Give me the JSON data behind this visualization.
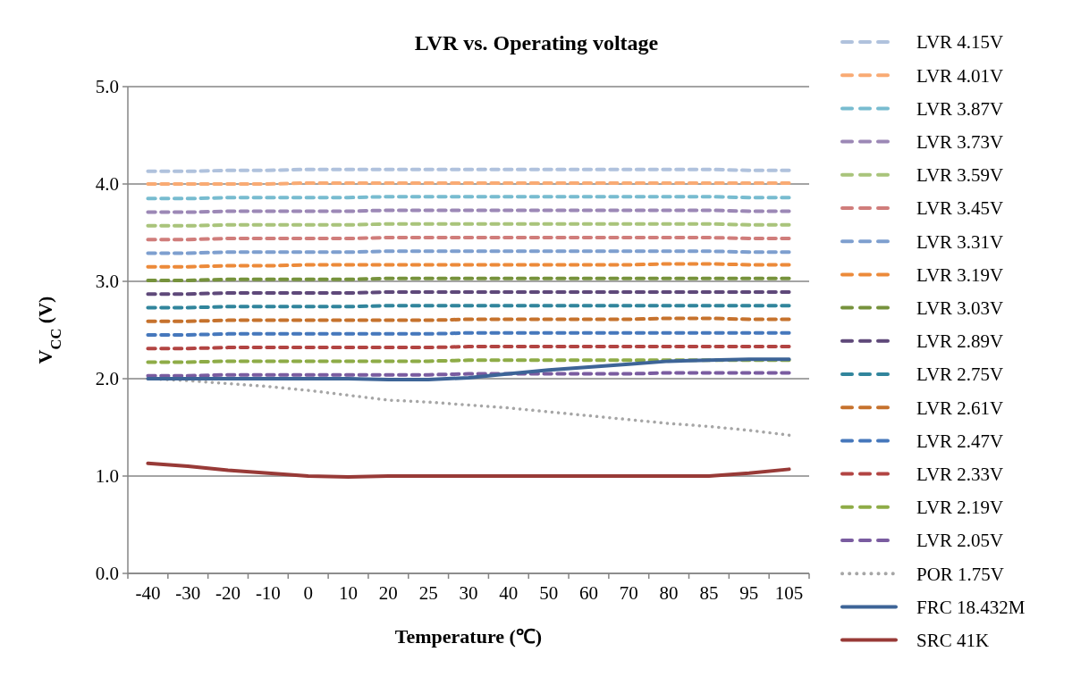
{
  "chart_data": {
    "type": "line",
    "title": "LVR vs. Operating voltage",
    "xlabel": "Temperature (℃)",
    "ylabel": "V$_{CC}$ (V)",
    "categories": [
      "-40",
      "-30",
      "-20",
      "-10",
      "0",
      "10",
      "20",
      "25",
      "30",
      "40",
      "50",
      "60",
      "70",
      "80",
      "85",
      "95",
      "105"
    ],
    "ylim": [
      0,
      5
    ],
    "yticks": [
      {
        "value": 0,
        "label": "0.0"
      },
      {
        "value": 1,
        "label": "1.0"
      },
      {
        "value": 2,
        "label": "2.0"
      },
      {
        "value": 3,
        "label": "3.0"
      },
      {
        "value": 4,
        "label": "4.0"
      },
      {
        "value": 5,
        "label": "5.0"
      }
    ],
    "grid": "y",
    "legend": "right",
    "marker": "none",
    "series": [
      {
        "name": "LVR 4.15V",
        "color": "#b0c2dd",
        "line_style": "dashed",
        "values": [
          4.13,
          4.13,
          4.14,
          4.14,
          4.15,
          4.15,
          4.15,
          4.15,
          4.15,
          4.15,
          4.15,
          4.15,
          4.15,
          4.15,
          4.15,
          4.14,
          4.14
        ]
      },
      {
        "name": "LVR 4.01V",
        "color": "#f9ab74",
        "line_style": "dashed",
        "values": [
          4.0,
          4.0,
          4.0,
          4.0,
          4.01,
          4.01,
          4.01,
          4.01,
          4.01,
          4.01,
          4.01,
          4.01,
          4.01,
          4.01,
          4.01,
          4.01,
          4.01
        ]
      },
      {
        "name": "LVR 3.87V",
        "color": "#78bcd0",
        "line_style": "dashed",
        "values": [
          3.85,
          3.85,
          3.86,
          3.86,
          3.86,
          3.86,
          3.87,
          3.87,
          3.87,
          3.87,
          3.87,
          3.87,
          3.87,
          3.87,
          3.87,
          3.86,
          3.86
        ]
      },
      {
        "name": "LVR 3.73V",
        "color": "#9c88b6",
        "line_style": "dashed",
        "values": [
          3.71,
          3.71,
          3.72,
          3.72,
          3.72,
          3.72,
          3.73,
          3.73,
          3.73,
          3.73,
          3.73,
          3.73,
          3.73,
          3.73,
          3.73,
          3.72,
          3.72
        ]
      },
      {
        "name": "LVR 3.59V",
        "color": "#a9c47b",
        "line_style": "dashed",
        "values": [
          3.57,
          3.57,
          3.58,
          3.58,
          3.58,
          3.58,
          3.59,
          3.59,
          3.59,
          3.59,
          3.59,
          3.59,
          3.59,
          3.59,
          3.59,
          3.58,
          3.58
        ]
      },
      {
        "name": "LVR 3.45V",
        "color": "#d07d7b",
        "line_style": "dashed",
        "values": [
          3.43,
          3.43,
          3.44,
          3.44,
          3.44,
          3.44,
          3.45,
          3.45,
          3.45,
          3.45,
          3.45,
          3.45,
          3.45,
          3.45,
          3.45,
          3.44,
          3.44
        ]
      },
      {
        "name": "LVR 3.31V",
        "color": "#7e9fcf",
        "line_style": "dashed",
        "values": [
          3.29,
          3.29,
          3.3,
          3.3,
          3.3,
          3.3,
          3.31,
          3.31,
          3.31,
          3.31,
          3.31,
          3.31,
          3.31,
          3.31,
          3.31,
          3.3,
          3.3
        ]
      },
      {
        "name": "LVR 3.19V",
        "color": "#ec8a3a",
        "line_style": "dashed",
        "values": [
          3.15,
          3.15,
          3.16,
          3.16,
          3.17,
          3.17,
          3.17,
          3.17,
          3.17,
          3.17,
          3.17,
          3.17,
          3.17,
          3.18,
          3.18,
          3.17,
          3.17
        ]
      },
      {
        "name": "LVR 3.03V",
        "color": "#76923c",
        "line_style": "dashed",
        "values": [
          3.01,
          3.01,
          3.02,
          3.02,
          3.02,
          3.02,
          3.03,
          3.03,
          3.03,
          3.03,
          3.03,
          3.03,
          3.03,
          3.03,
          3.03,
          3.03,
          3.03
        ]
      },
      {
        "name": "LVR 2.89V",
        "color": "#5f497a",
        "line_style": "dashed",
        "values": [
          2.87,
          2.87,
          2.88,
          2.88,
          2.88,
          2.88,
          2.89,
          2.89,
          2.89,
          2.89,
          2.89,
          2.89,
          2.89,
          2.89,
          2.89,
          2.89,
          2.89
        ]
      },
      {
        "name": "LVR 2.75V",
        "color": "#31859c",
        "line_style": "dashed",
        "values": [
          2.73,
          2.73,
          2.74,
          2.74,
          2.74,
          2.74,
          2.75,
          2.75,
          2.75,
          2.75,
          2.75,
          2.75,
          2.75,
          2.75,
          2.75,
          2.75,
          2.75
        ]
      },
      {
        "name": "LVR 2.61V",
        "color": "#c6722d",
        "line_style": "dashed",
        "values": [
          2.59,
          2.59,
          2.6,
          2.6,
          2.6,
          2.6,
          2.6,
          2.6,
          2.61,
          2.61,
          2.61,
          2.61,
          2.61,
          2.62,
          2.62,
          2.61,
          2.61
        ]
      },
      {
        "name": "LVR 2.47V",
        "color": "#4678bc",
        "line_style": "dashed",
        "values": [
          2.45,
          2.45,
          2.46,
          2.46,
          2.46,
          2.46,
          2.46,
          2.46,
          2.47,
          2.47,
          2.47,
          2.47,
          2.47,
          2.47,
          2.47,
          2.47,
          2.47
        ]
      },
      {
        "name": "LVR 2.33V",
        "color": "#b24442",
        "line_style": "dashed",
        "values": [
          2.31,
          2.31,
          2.32,
          2.32,
          2.32,
          2.32,
          2.32,
          2.32,
          2.33,
          2.33,
          2.33,
          2.33,
          2.33,
          2.33,
          2.33,
          2.33,
          2.33
        ]
      },
      {
        "name": "LVR 2.19V",
        "color": "#8eac47",
        "line_style": "dashed",
        "values": [
          2.17,
          2.17,
          2.18,
          2.18,
          2.18,
          2.18,
          2.18,
          2.18,
          2.19,
          2.19,
          2.19,
          2.19,
          2.19,
          2.19,
          2.19,
          2.19,
          2.19
        ]
      },
      {
        "name": "LVR 2.05V",
        "color": "#7a5ca0",
        "line_style": "dashed",
        "values": [
          2.03,
          2.03,
          2.04,
          2.04,
          2.04,
          2.04,
          2.04,
          2.04,
          2.05,
          2.05,
          2.05,
          2.05,
          2.05,
          2.06,
          2.06,
          2.06,
          2.06
        ]
      },
      {
        "name": "POR 1.75V",
        "color": "#a6a6a6",
        "line_style": "dotted",
        "values": [
          2.0,
          1.98,
          1.95,
          1.92,
          1.88,
          1.83,
          1.78,
          1.76,
          1.73,
          1.7,
          1.66,
          1.62,
          1.58,
          1.54,
          1.51,
          1.47,
          1.42
        ]
      },
      {
        "name": "FRC 18.432M",
        "color": "#3d6497",
        "line_style": "solid",
        "values": [
          2.0,
          2.0,
          2.0,
          2.0,
          2.0,
          2.0,
          1.99,
          1.99,
          2.01,
          2.05,
          2.09,
          2.12,
          2.15,
          2.18,
          2.19,
          2.2,
          2.2
        ]
      },
      {
        "name": "SRC 41K",
        "color": "#983a37",
        "line_style": "solid",
        "values": [
          1.13,
          1.1,
          1.06,
          1.03,
          1.0,
          0.99,
          1.0,
          1.0,
          1.0,
          1.0,
          1.0,
          1.0,
          1.0,
          1.0,
          1.0,
          1.03,
          1.07
        ]
      }
    ]
  }
}
